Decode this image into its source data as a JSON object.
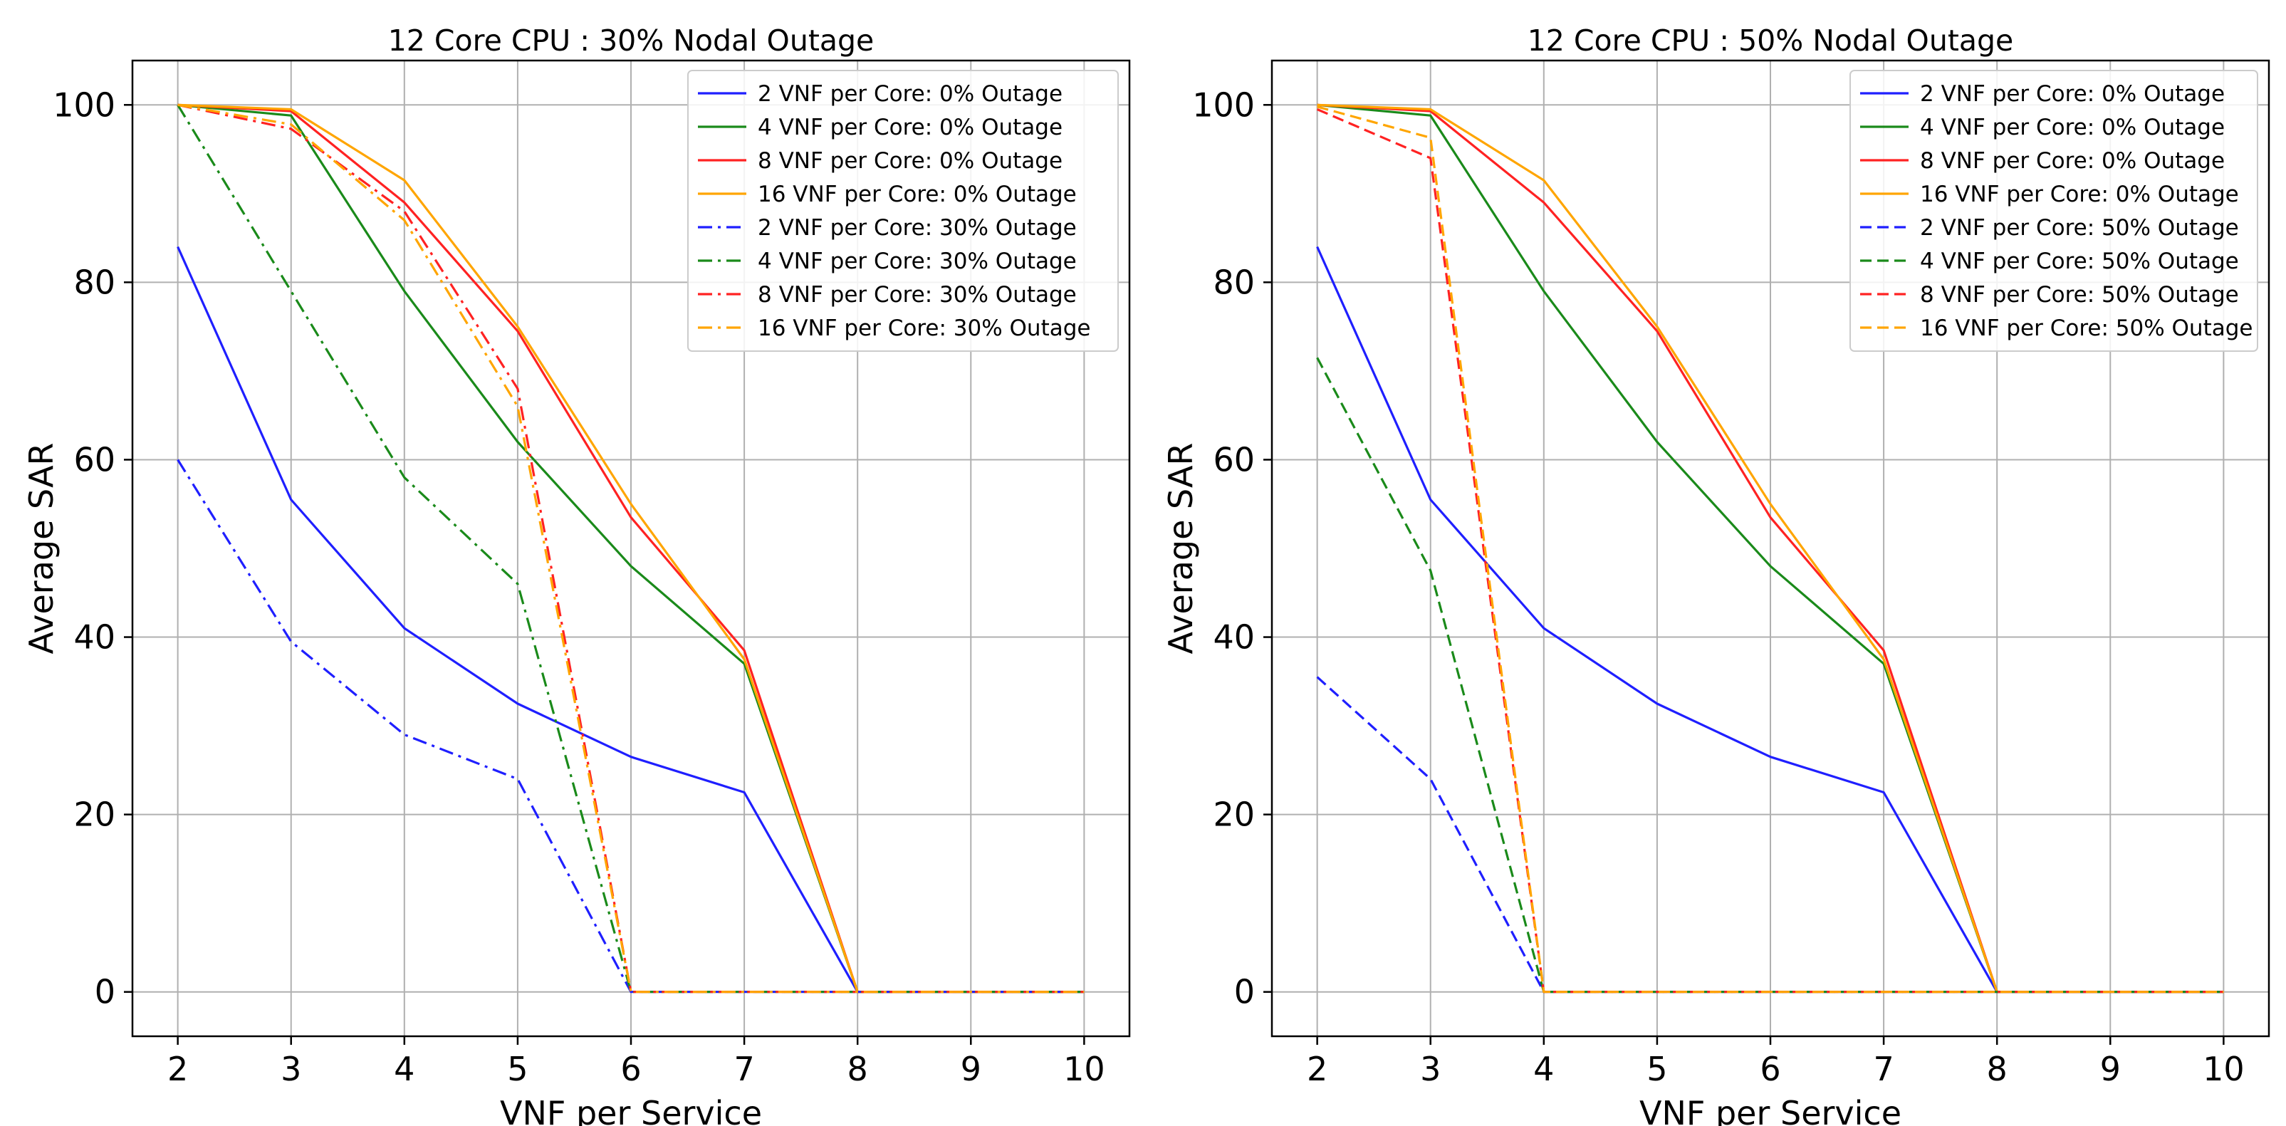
{
  "chart_data": [
    {
      "type": "line",
      "title": "12 Core CPU : 30% Nodal Outage",
      "xlabel": "VNF per Service",
      "ylabel": "Average SAR",
      "xlim": [
        1.6,
        10.4
      ],
      "ylim": [
        -5,
        105
      ],
      "xticks": [
        2,
        3,
        4,
        5,
        6,
        7,
        8,
        9,
        10
      ],
      "yticks": [
        0,
        20,
        40,
        60,
        80,
        100
      ],
      "grid": true,
      "legend_position": "top-right",
      "x": [
        2,
        3,
        4,
        5,
        6,
        7,
        8,
        9,
        10
      ],
      "series": [
        {
          "name": "2 VNF per Core: 0% Outage",
          "color": "#1f1fff",
          "style": "solid",
          "values": [
            84,
            55.5,
            41,
            32.5,
            26.5,
            22.5,
            0,
            0,
            0
          ]
        },
        {
          "name": "4 VNF per Core: 0% Outage",
          "color": "#1a8a1a",
          "style": "solid",
          "values": [
            100,
            98.8,
            79,
            62,
            48,
            37,
            0,
            0,
            0
          ]
        },
        {
          "name": "8 VNF per Core: 0% Outage",
          "color": "#ff2222",
          "style": "solid",
          "values": [
            100,
            99.3,
            89,
            74.5,
            53.5,
            38.5,
            0,
            0,
            0
          ]
        },
        {
          "name": "16 VNF per Core: 0% Outage",
          "color": "#ffa500",
          "style": "solid",
          "values": [
            100,
            99.5,
            91.5,
            75,
            55,
            37.5,
            0,
            0,
            0
          ]
        },
        {
          "name": "2 VNF per Core: 30% Outage",
          "color": "#1f1fff",
          "style": "dashdot",
          "values": [
            60,
            39.5,
            29,
            24,
            0,
            0,
            0,
            0,
            0
          ]
        },
        {
          "name": "4 VNF per Core: 30% Outage",
          "color": "#1a8a1a",
          "style": "dashdot",
          "values": [
            100,
            79,
            58,
            46,
            0,
            0,
            0,
            0,
            0
          ]
        },
        {
          "name": "8 VNF per Core: 30% Outage",
          "color": "#ff2222",
          "style": "dashdot",
          "values": [
            100,
            97.3,
            88,
            68,
            0,
            0,
            0,
            0,
            0
          ]
        },
        {
          "name": "16 VNF per Core: 30% Outage",
          "color": "#ffa500",
          "style": "dashdot",
          "values": [
            100,
            97.8,
            87,
            66,
            0,
            0,
            0,
            0,
            0
          ]
        }
      ]
    },
    {
      "type": "line",
      "title": "12 Core CPU : 50% Nodal Outage",
      "xlabel": "VNF per Service",
      "ylabel": "Average SAR",
      "xlim": [
        1.6,
        10.4
      ],
      "ylim": [
        -5,
        105
      ],
      "xticks": [
        2,
        3,
        4,
        5,
        6,
        7,
        8,
        9,
        10
      ],
      "yticks": [
        0,
        20,
        40,
        60,
        80,
        100
      ],
      "grid": true,
      "legend_position": "top-right",
      "x": [
        2,
        3,
        4,
        5,
        6,
        7,
        8,
        9,
        10
      ],
      "series": [
        {
          "name": "2 VNF per Core: 0% Outage",
          "color": "#1f1fff",
          "style": "solid",
          "values": [
            84,
            55.5,
            41,
            32.5,
            26.5,
            22.5,
            0,
            0,
            0
          ]
        },
        {
          "name": "4 VNF per Core: 0% Outage",
          "color": "#1a8a1a",
          "style": "solid",
          "values": [
            100,
            98.8,
            79,
            62,
            48,
            37,
            0,
            0,
            0
          ]
        },
        {
          "name": "8 VNF per Core: 0% Outage",
          "color": "#ff2222",
          "style": "solid",
          "values": [
            100,
            99.3,
            89,
            74.5,
            53.5,
            38.5,
            0,
            0,
            0
          ]
        },
        {
          "name": "16 VNF per Core: 0% Outage",
          "color": "#ffa500",
          "style": "solid",
          "values": [
            100,
            99.5,
            91.5,
            75,
            55,
            37.5,
            0,
            0,
            0
          ]
        },
        {
          "name": "2 VNF per Core: 50% Outage",
          "color": "#1f1fff",
          "style": "dashed",
          "values": [
            35.5,
            24,
            0,
            0,
            0,
            0,
            0,
            0,
            0
          ]
        },
        {
          "name": "4 VNF per Core: 50% Outage",
          "color": "#1a8a1a",
          "style": "dashed",
          "values": [
            71.5,
            47.5,
            0,
            0,
            0,
            0,
            0,
            0,
            0
          ]
        },
        {
          "name": "8 VNF per Core: 50% Outage",
          "color": "#ff2222",
          "style": "dashed",
          "values": [
            99.5,
            94,
            0,
            0,
            0,
            0,
            0,
            0,
            0
          ]
        },
        {
          "name": "16 VNF per Core: 50% Outage",
          "color": "#ffa500",
          "style": "dashed",
          "values": [
            99.8,
            96.3,
            0,
            0,
            0,
            0,
            0,
            0,
            0
          ]
        }
      ]
    }
  ]
}
